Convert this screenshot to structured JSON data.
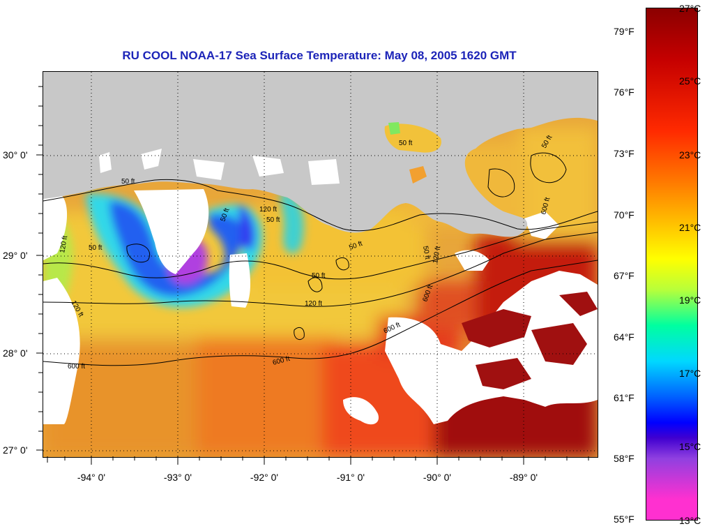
{
  "title": "RU COOL  NOAA-17  Sea Surface Temperature:  May 08, 2005 1620 GMT",
  "map": {
    "latitude_labels": [
      "30° 0'",
      "29° 0'",
      "28° 0'",
      "27° 0'"
    ],
    "longitude_labels": [
      "-94° 0'",
      "-93° 0'",
      "-92° 0'",
      "-91° 0'",
      "-90° 0'",
      "-89° 0'"
    ],
    "contour_labels": {
      "a": "50 ft",
      "b": "120 ft",
      "c": "50 ft",
      "d": "120 ft",
      "e": "50 ft",
      "f": "120 ft",
      "g": "600 ft",
      "h": "600 ft",
      "i": "600 ft",
      "j": "50 ft",
      "k": "50 ft",
      "l": "120 ft",
      "m": "50 ft",
      "n": "50 ft",
      "o": "50 ft",
      "p": "120 ft",
      "q": "600 ft",
      "r": "600 ft",
      "s": "50 ft"
    },
    "colors": {
      "land": "#c8c8c8",
      "no_data": "#ffffff",
      "contour": "#000000"
    }
  },
  "colorbar": {
    "fahrenheit_labels": [
      "79°F",
      "76°F",
      "73°F",
      "70°F",
      "67°F",
      "64°F",
      "61°F",
      "58°F",
      "55°F"
    ],
    "celsius_labels": [
      "27°C",
      "25°C",
      "23°C",
      "21°C",
      "19°C",
      "17°C",
      "15°C",
      "13°C"
    ]
  }
}
